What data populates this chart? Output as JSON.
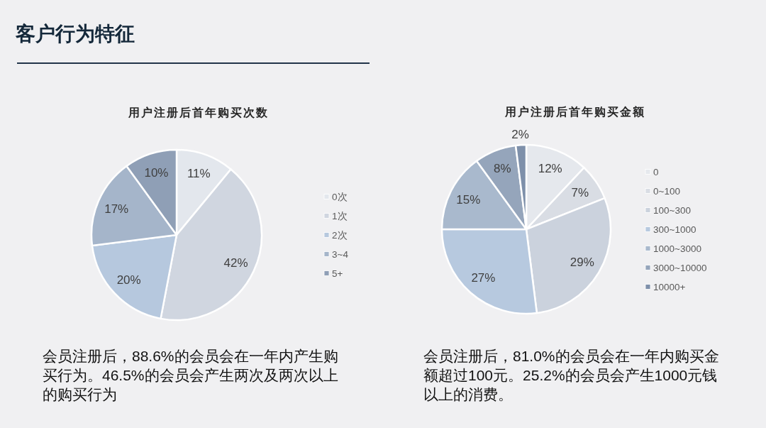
{
  "chart_data": [
    {
      "type": "pie",
      "title": "用户注册后首年购买次数",
      "categories": [
        "0次",
        "1次",
        "2次",
        "3~4",
        "5+"
      ],
      "values": [
        11,
        42,
        20,
        17,
        10
      ],
      "value_labels": [
        "11%",
        "42%",
        "20%",
        "17%",
        "10%"
      ],
      "colors": [
        "#e3e7ed",
        "#d0d6e0",
        "#b6c8de",
        "#a5b5ca",
        "#8f9fb6"
      ],
      "legend": "right",
      "annotations": [
        "客户行为特征",
        "会员注册后，88.6%的会员会在一年内产生购买行为。46.5%的会员会产生两次及两次以上的购买行为"
      ]
    },
    {
      "type": "pie",
      "title": "用户注册后首年购买金额",
      "categories": [
        "0",
        "0~100",
        "100~300",
        "300~1000",
        "1000~3000",
        "3000~10000",
        "10000+"
      ],
      "values": [
        12,
        7,
        29,
        27,
        15,
        8,
        2
      ],
      "value_labels": [
        "12%",
        "7%",
        "29%",
        "27%",
        "15%",
        "8%",
        "2%"
      ],
      "colors": [
        "#e5e8ed",
        "#d9dde4",
        "#cbd2dd",
        "#b7c9df",
        "#a9b9cd",
        "#95a5bb",
        "#7e90aa"
      ],
      "legend": "right",
      "annotations": [
        "会员注册后，81.0%的会员会在一年内购买金额超过100元。25.2%的会员会产生1000元钱以上的消费。"
      ]
    }
  ]
}
